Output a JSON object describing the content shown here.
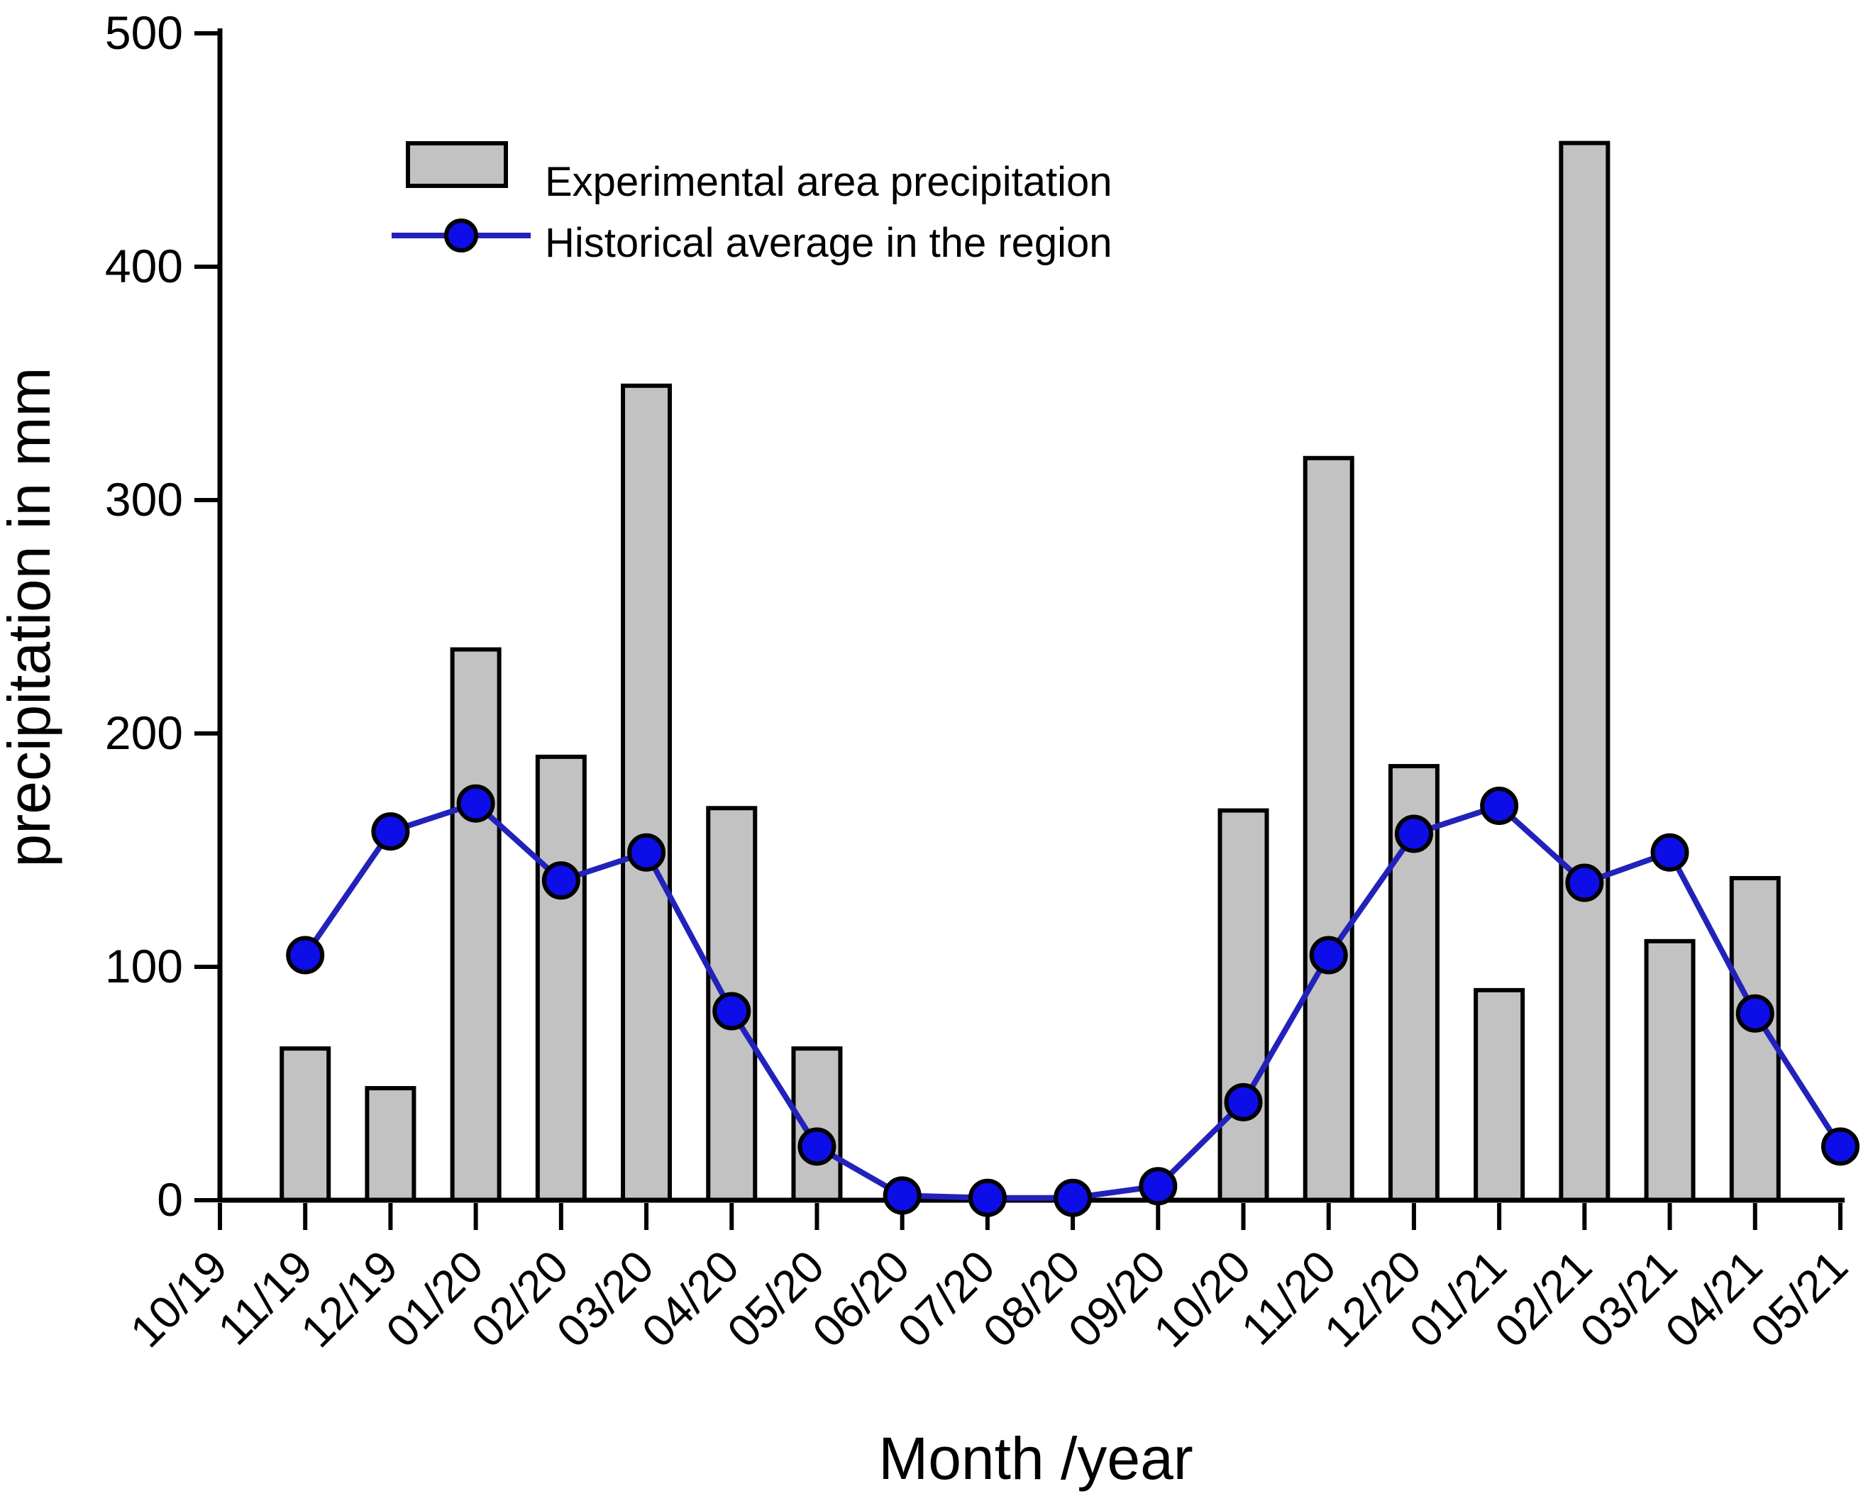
{
  "chart_data": {
    "type": "bar",
    "title": "",
    "xlabel": "Month /year",
    "ylabel": "precipitation in mm",
    "ylim": [
      0,
      500
    ],
    "yticks": [
      0,
      100,
      200,
      300,
      400,
      500
    ],
    "grid": false,
    "legend_position": "upper-left-inside",
    "categories": [
      "10/19",
      "11/19",
      "12/19",
      "01/20",
      "02/20",
      "03/20",
      "04/20",
      "05/20",
      "06/20",
      "07/20",
      "08/20",
      "09/20",
      "10/20",
      "11/20",
      "12/20",
      "01/21",
      "02/21",
      "03/21",
      "04/21",
      "05/21"
    ],
    "series": [
      {
        "name": "Experimental area precipitation",
        "kind": "bar",
        "fill_color": "#c2c2c2",
        "stroke_color": "#000000",
        "values": [
          null,
          65,
          48,
          236,
          190,
          349,
          168,
          65,
          null,
          null,
          null,
          null,
          167,
          318,
          186,
          90,
          453,
          111,
          138,
          null
        ]
      },
      {
        "name": "Historical average in the region",
        "kind": "line",
        "line_color": "#2222bb",
        "marker_color": "#0d0de8",
        "marker_stroke": "#000000",
        "values": [
          null,
          105,
          158,
          170,
          137,
          149,
          81,
          23,
          2,
          1,
          1,
          6,
          42,
          105,
          157,
          169,
          136,
          149,
          80,
          23
        ]
      }
    ]
  },
  "legend": {
    "items": [
      {
        "label": "Experimental area precipitation",
        "swatch": "bar-swatch"
      },
      {
        "label": "Historical average in the region",
        "swatch": "line-marker-swatch"
      }
    ]
  },
  "axes": {
    "x_title": "Month /year",
    "y_title": "precipitation in mm"
  }
}
